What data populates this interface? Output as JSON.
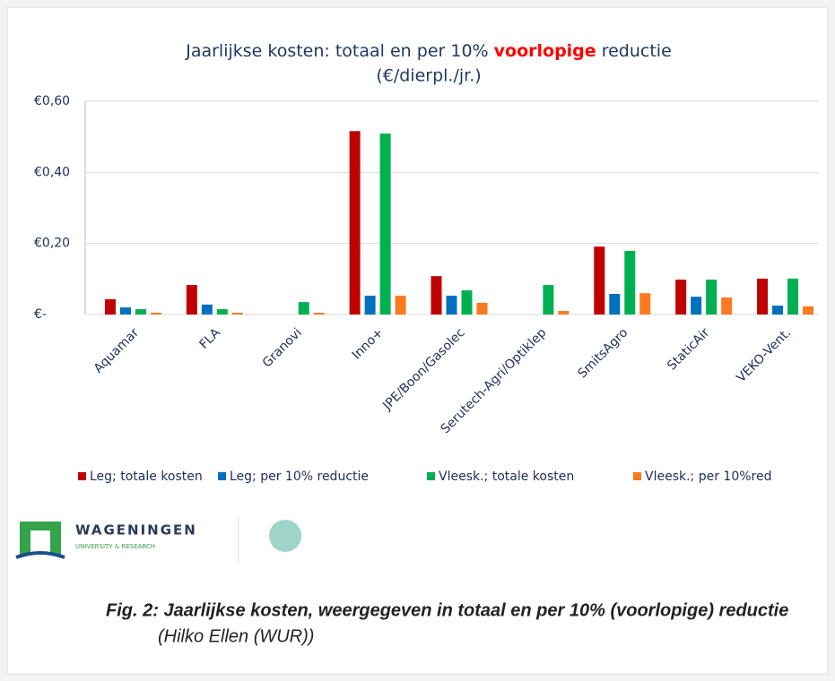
{
  "chart_data": {
    "type": "bar",
    "title": [
      "Jaarlijkse kosten: totaal en per 10%",
      "voorlopige",
      "reductie",
      "(€/dierpl./jr.)"
    ],
    "categories": [
      "Aquamar",
      "FLA",
      "Granovi",
      "Inno+",
      "JPE/Boon/Gasolec",
      "Serutech-Agri/Optiklep",
      "SmitsAgro",
      "StaticAir",
      "VEKO-Vent."
    ],
    "series": [
      {
        "name": "Leg; totale kosten",
        "color": "#c00000",
        "values": [
          0.043,
          0.083,
          null,
          0.516,
          0.108,
          null,
          0.191,
          0.098,
          0.101
        ]
      },
      {
        "name": "Leg; per 10% reductie",
        "color": "#0070c0",
        "values": [
          0.02,
          0.028,
          null,
          0.053,
          0.053,
          null,
          0.058,
          0.05,
          0.025
        ]
      },
      {
        "name": "Vleesk.; totale kosten",
        "color": "#00b050",
        "values": [
          0.015,
          0.015,
          0.035,
          0.509,
          0.068,
          0.083,
          0.179,
          0.098,
          0.101
        ]
      },
      {
        "name": "Vleesk.; per 10%red",
        "color": "#f97a1f",
        "values": [
          0.005,
          0.005,
          0.005,
          0.053,
          0.033,
          0.01,
          0.06,
          0.048,
          0.023
        ]
      }
    ],
    "ylim": [
      0,
      0.6
    ],
    "yticks": [
      {
        "value": 0,
        "label": "€-"
      },
      {
        "value": 0.2,
        "label": "€0,20"
      },
      {
        "value": 0.4,
        "label": "€0,40"
      },
      {
        "value": 0.6,
        "label": "€0,60"
      }
    ],
    "grid": true,
    "legend": "bottom"
  },
  "logo": {
    "name": "WAGENINGEN",
    "subtitle": "UNIVERSITY & RESEARCH"
  },
  "caption": {
    "title": "Fig. 2: Jaarlijkse kosten, weergegeven in totaal en per 10% (voorlopige) reductie",
    "credit": "(Hilko Ellen (WUR))"
  }
}
